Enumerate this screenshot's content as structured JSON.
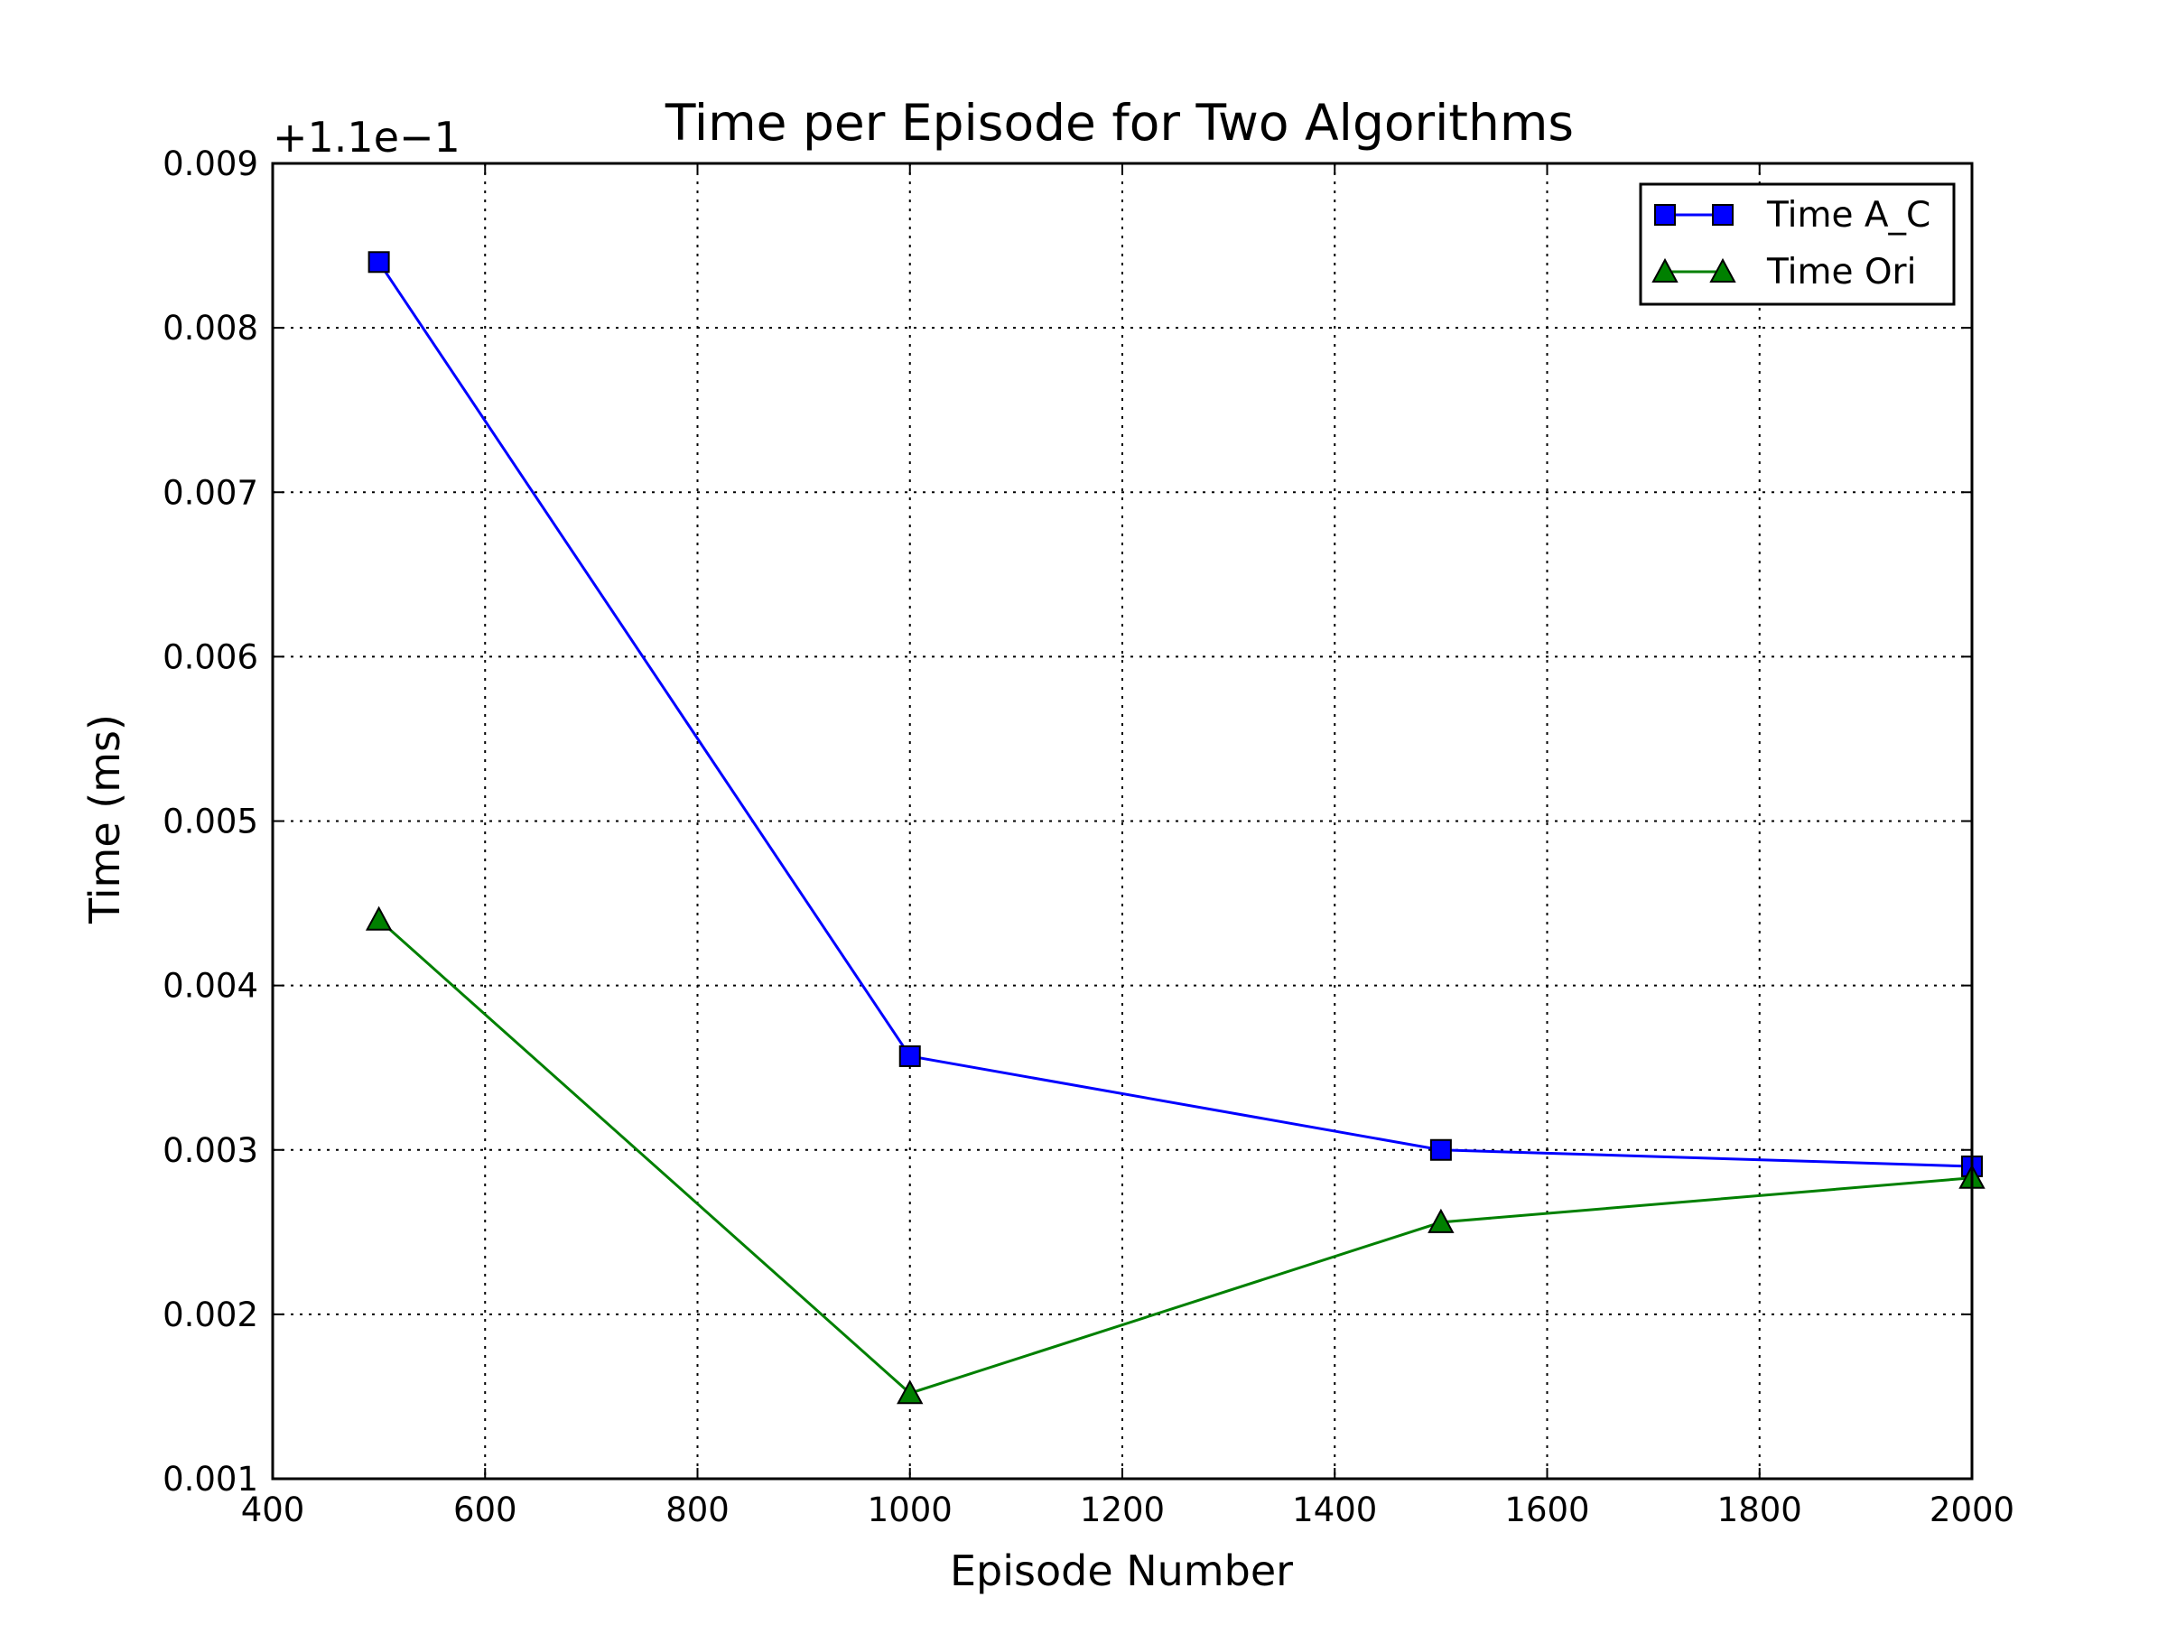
{
  "chart_data": {
    "type": "line",
    "title": "Time per Episode for Two Algorithms",
    "xlabel": "Episode Number",
    "ylabel": "Time (ms)",
    "y_offset_label": "+1.1e−1",
    "xlim": [
      400,
      2000
    ],
    "ylim": [
      0.001,
      0.009
    ],
    "xticks": [
      400,
      600,
      800,
      1000,
      1200,
      1400,
      1600,
      1800,
      2000
    ],
    "xtick_labels": [
      "400",
      "600",
      "800",
      "1000",
      "1200",
      "1400",
      "1600",
      "1800",
      "2000"
    ],
    "yticks": [
      0.001,
      0.002,
      0.003,
      0.004,
      0.005,
      0.006,
      0.007,
      0.008,
      0.009
    ],
    "ytick_labels": [
      "0.001",
      "0.002",
      "0.003",
      "0.004",
      "0.005",
      "0.006",
      "0.007",
      "0.008",
      "0.009"
    ],
    "grid": true,
    "legend_position": "top-right",
    "x": [
      500,
      1000,
      1500,
      2000
    ],
    "series": [
      {
        "name": "Time A_C",
        "values": [
          0.0084,
          0.00357,
          0.003,
          0.0029
        ],
        "color": "#0000ff",
        "marker": "square"
      },
      {
        "name": "Time Ori",
        "values": [
          0.0044,
          0.00152,
          0.00256,
          0.00283
        ],
        "color": "#008000",
        "marker": "triangle"
      }
    ]
  }
}
